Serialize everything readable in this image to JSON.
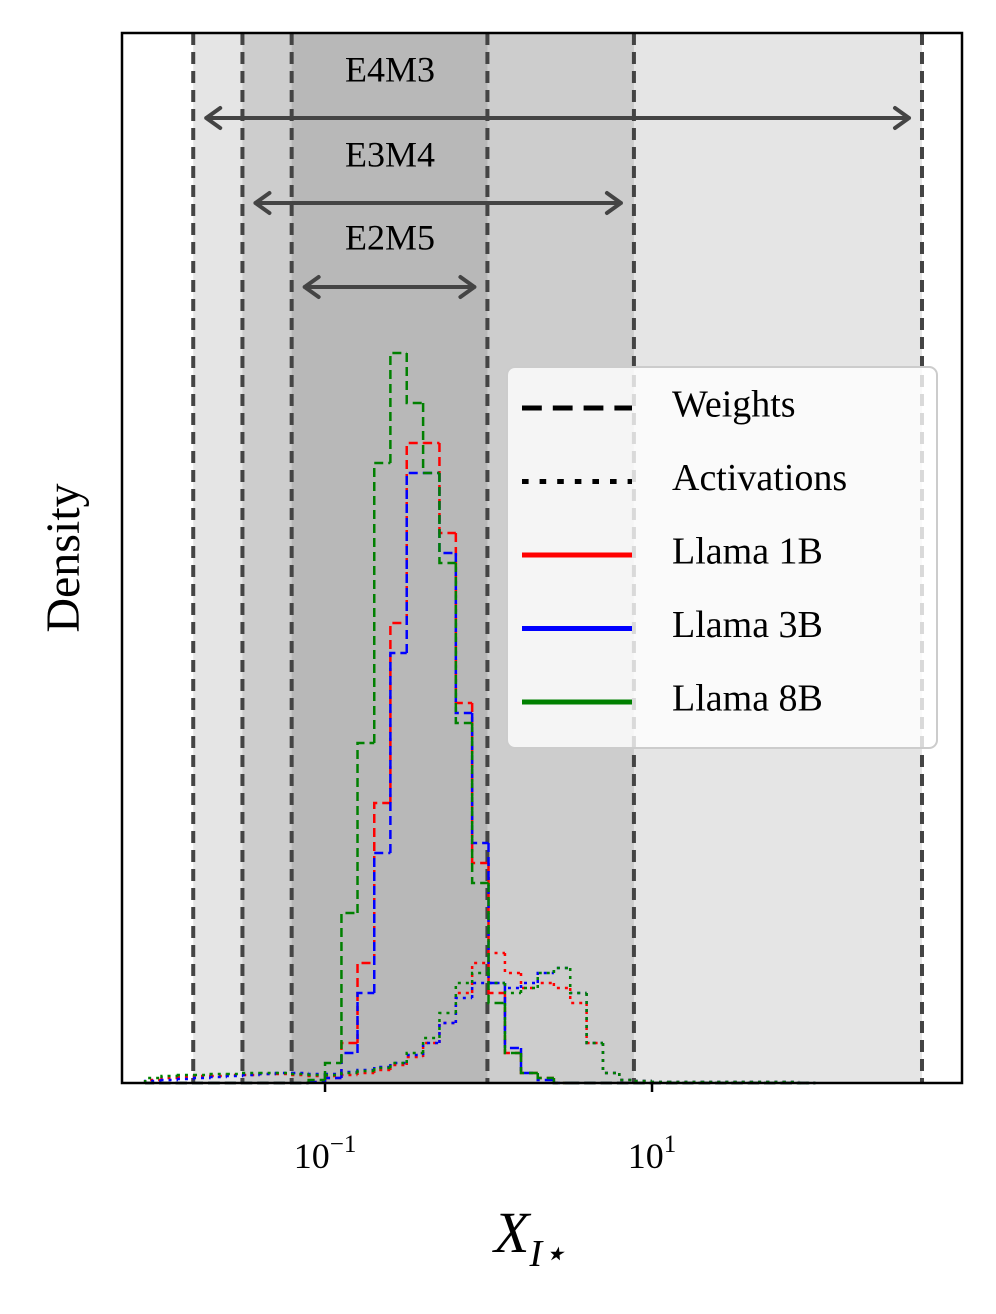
{
  "chart_data": {
    "type": "histogram",
    "ylabel": "Density",
    "xlabel": {
      "text": "X",
      "subscript": "I⋆"
    },
    "xscale": "log",
    "xlim": [
      0.00573,
      787
    ],
    "xticks": [
      {
        "value": 0.1,
        "label": "10",
        "exponent": "−1"
      },
      {
        "value": 10,
        "label": "10",
        "exponent": "1"
      }
    ],
    "ylim": [
      0,
      1.05
    ],
    "formats": [
      {
        "label": "E4M3",
        "min": 0.015625,
        "max": 448
      },
      {
        "label": "E3M4",
        "min": 0.03125,
        "max": 7.75
      },
      {
        "label": "E2M5",
        "min": 0.0625,
        "max": 0.984375
      }
    ],
    "styles": [
      {
        "name": "Weights",
        "dash": "dashed"
      },
      {
        "name": "Activations",
        "dash": "dotted"
      }
    ],
    "bins": [
      0.00794,
      0.01,
      0.0126,
      0.0158,
      0.02,
      0.0251,
      0.0316,
      0.0398,
      0.0501,
      0.0631,
      0.0794,
      0.1,
      0.126,
      0.158,
      0.2,
      0.251,
      0.316,
      0.398,
      0.501,
      0.631,
      0.794,
      1,
      1.26,
      1.58,
      2,
      2.51,
      3.16,
      3.98,
      5.01,
      6.31,
      7.94,
      10,
      12.6,
      15.8,
      20,
      25.1,
      31.6,
      39.8,
      50.1,
      63.1,
      79.4,
      100
    ],
    "series": [
      {
        "name": "Llama 1B",
        "color": "#ff0000",
        "weights": [
          0,
          0,
          0,
          0,
          0,
          0,
          0,
          0,
          0,
          0,
          0.001,
          0.005,
          0.04,
          0.12,
          0.28,
          0.46,
          0.64,
          0.64,
          0.55,
          0.38,
          0.22,
          0.09,
          0.03,
          0.01,
          0.005,
          0,
          0,
          0,
          0,
          0,
          0,
          0,
          0,
          0,
          0,
          0,
          0,
          0,
          0,
          0,
          0
        ],
        "activations": [
          0.003,
          0.005,
          0.006,
          0.007,
          0.007,
          0.008,
          0.008,
          0.009,
          0.009,
          0.008,
          0.007,
          0.007,
          0.008,
          0.01,
          0.013,
          0.018,
          0.026,
          0.04,
          0.06,
          0.09,
          0.12,
          0.13,
          0.11,
          0.095,
          0.1,
          0.095,
          0.08,
          0.04,
          0.01,
          0.003,
          0.002,
          0.001,
          0.001,
          0.001,
          0.001,
          0.001,
          0.001,
          0.001,
          0.001,
          0.001,
          0
        ]
      },
      {
        "name": "Llama 3B",
        "color": "#0000ff",
        "weights": [
          0,
          0,
          0,
          0,
          0,
          0,
          0,
          0,
          0,
          0,
          0.001,
          0.005,
          0.03,
          0.09,
          0.23,
          0.43,
          0.61,
          0.61,
          0.53,
          0.37,
          0.24,
          0.1,
          0.035,
          0.01,
          0.003,
          0,
          0,
          0,
          0,
          0,
          0,
          0,
          0,
          0,
          0,
          0,
          0,
          0,
          0,
          0,
          0
        ],
        "activations": [
          0.002,
          0.003,
          0.004,
          0.005,
          0.006,
          0.007,
          0.008,
          0.009,
          0.01,
          0.01,
          0.009,
          0.009,
          0.011,
          0.013,
          0.016,
          0.02,
          0.028,
          0.04,
          0.06,
          0.085,
          0.1,
          0.1,
          0.095,
          0.1,
          0.11,
          0.115,
          0.09,
          0.04,
          0.01,
          0.003,
          0.002,
          0.001,
          0.001,
          0.001,
          0.001,
          0.001,
          0.001,
          0.001,
          0.001,
          0.001,
          0
        ]
      },
      {
        "name": "Llama 8B",
        "color": "#008000",
        "weights": [
          0,
          0,
          0,
          0,
          0,
          0,
          0,
          0,
          0,
          0,
          0.003,
          0.02,
          0.17,
          0.34,
          0.62,
          0.73,
          0.68,
          0.61,
          0.52,
          0.36,
          0.2,
          0.08,
          0.03,
          0.01,
          0.005,
          0,
          0,
          0,
          0,
          0,
          0,
          0,
          0,
          0,
          0,
          0,
          0,
          0,
          0,
          0,
          0
        ],
        "activations": [
          0.005,
          0.007,
          0.008,
          0.008,
          0.009,
          0.009,
          0.01,
          0.01,
          0.01,
          0.009,
          0.008,
          0.008,
          0.01,
          0.012,
          0.015,
          0.02,
          0.03,
          0.045,
          0.07,
          0.1,
          0.11,
          0.1,
          0.09,
          0.095,
          0.11,
          0.115,
          0.09,
          0.04,
          0.01,
          0.003,
          0.002,
          0.001,
          0.001,
          0.001,
          0.001,
          0.001,
          0.001,
          0.001,
          0.001,
          0.001,
          0
        ]
      }
    ]
  }
}
